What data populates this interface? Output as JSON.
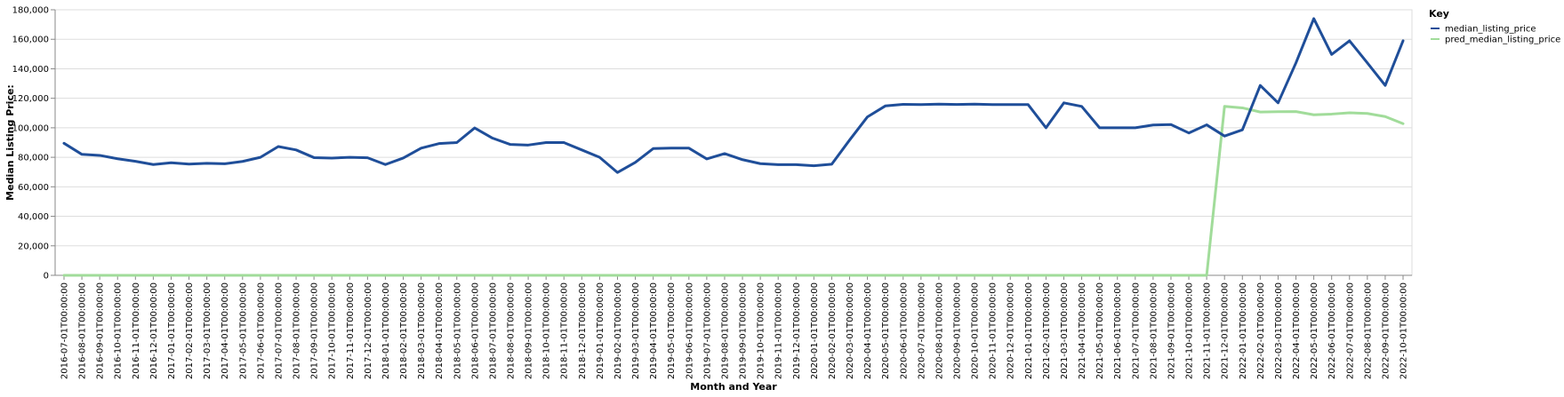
{
  "chart_data": {
    "type": "line",
    "xlabel": "Month and Year",
    "ylabel": "Median Listing Price:",
    "ylim": [
      0,
      180000
    ],
    "y_ticks": [
      0,
      20000,
      40000,
      60000,
      80000,
      100000,
      120000,
      140000,
      160000,
      180000
    ],
    "y_tick_labels": [
      "0",
      "20,000",
      "40,000",
      "60,000",
      "80,000",
      "100,000",
      "120,000",
      "140,000",
      "160,000",
      "180,000"
    ],
    "grid": true,
    "legend": {
      "title": "Key",
      "placement": "right"
    },
    "x": [
      "2016-07-01T00:00:00",
      "2016-08-01T00:00:00",
      "2016-09-01T00:00:00",
      "2016-10-01T00:00:00",
      "2016-11-01T00:00:00",
      "2016-12-01T00:00:00",
      "2017-01-01T00:00:00",
      "2017-02-01T00:00:00",
      "2017-03-01T00:00:00",
      "2017-04-01T00:00:00",
      "2017-05-01T00:00:00",
      "2017-06-01T00:00:00",
      "2017-07-01T00:00:00",
      "2017-08-01T00:00:00",
      "2017-09-01T00:00:00",
      "2017-10-01T00:00:00",
      "2017-11-01T00:00:00",
      "2017-12-01T00:00:00",
      "2018-01-01T00:00:00",
      "2018-02-01T00:00:00",
      "2018-03-01T00:00:00",
      "2018-04-01T00:00:00",
      "2018-05-01T00:00:00",
      "2018-06-01T00:00:00",
      "2018-07-01T00:00:00",
      "2018-08-01T00:00:00",
      "2018-09-01T00:00:00",
      "2018-10-01T00:00:00",
      "2018-11-01T00:00:00",
      "2018-12-01T00:00:00",
      "2019-01-01T00:00:00",
      "2019-02-01T00:00:00",
      "2019-03-01T00:00:00",
      "2019-04-01T00:00:00",
      "2019-05-01T00:00:00",
      "2019-06-01T00:00:00",
      "2019-07-01T00:00:00",
      "2019-08-01T00:00:00",
      "2019-09-01T00:00:00",
      "2019-10-01T00:00:00",
      "2019-11-01T00:00:00",
      "2019-12-01T00:00:00",
      "2020-01-01T00:00:00",
      "2020-02-01T00:00:00",
      "2020-03-01T00:00:00",
      "2020-04-01T00:00:00",
      "2020-05-01T00:00:00",
      "2020-06-01T00:00:00",
      "2020-07-01T00:00:00",
      "2020-08-01T00:00:00",
      "2020-09-01T00:00:00",
      "2020-10-01T00:00:00",
      "2020-11-01T00:00:00",
      "2020-12-01T00:00:00",
      "2021-01-01T00:00:00",
      "2021-02-01T00:00:00",
      "2021-03-01T00:00:00",
      "2021-04-01T00:00:00",
      "2021-05-01T00:00:00",
      "2021-06-01T00:00:00",
      "2021-07-01T00:00:00",
      "2021-08-01T00:00:00",
      "2021-09-01T00:00:00",
      "2021-10-01T00:00:00",
      "2021-11-01T00:00:00",
      "2021-12-01T00:00:00",
      "2022-01-01T00:00:00",
      "2022-02-01T00:00:00",
      "2022-03-01T00:00:00",
      "2022-04-01T00:00:00",
      "2022-05-01T00:00:00",
      "2022-06-01T00:00:00",
      "2022-07-01T00:00:00",
      "2022-08-01T00:00:00",
      "2022-09-01T00:00:00",
      "2022-10-01T00:00:00"
    ],
    "series": [
      {
        "name": "median_listing_price",
        "color": "#1f4e99",
        "values": [
          89500,
          82000,
          81300,
          79000,
          77300,
          75100,
          76300,
          75400,
          75900,
          75600,
          77200,
          80000,
          87300,
          85000,
          79800,
          79500,
          80000,
          79700,
          75100,
          79500,
          86200,
          89300,
          90000,
          99900,
          93000,
          88700,
          88300,
          90000,
          90000,
          85000,
          80000,
          69700,
          76600,
          85900,
          86200,
          86200,
          78900,
          82500,
          78400,
          75700,
          75000,
          75000,
          74300,
          75300,
          91700,
          107400,
          114800,
          115900,
          115700,
          116000,
          115800,
          116000,
          115700,
          115700,
          115700,
          100000,
          116900,
          114500,
          100000,
          100000,
          100000,
          101900,
          102200,
          96500,
          102000,
          94400,
          98600,
          128700,
          116900,
          144000,
          174000,
          149700,
          159000,
          144000,
          128700,
          159000
        ]
      },
      {
        "name": "pred_median_listing_price",
        "color": "#a1dc9a",
        "values": [
          0,
          0,
          0,
          0,
          0,
          0,
          0,
          0,
          0,
          0,
          0,
          0,
          0,
          0,
          0,
          0,
          0,
          0,
          0,
          0,
          0,
          0,
          0,
          0,
          0,
          0,
          0,
          0,
          0,
          0,
          0,
          0,
          0,
          0,
          0,
          0,
          0,
          0,
          0,
          0,
          0,
          0,
          0,
          0,
          0,
          0,
          0,
          0,
          0,
          0,
          0,
          0,
          0,
          0,
          0,
          0,
          0,
          0,
          0,
          0,
          0,
          0,
          0,
          0,
          0,
          114500,
          113500,
          110700,
          110900,
          111000,
          108800,
          109300,
          110200,
          109700,
          107600,
          102800
        ]
      }
    ]
  }
}
